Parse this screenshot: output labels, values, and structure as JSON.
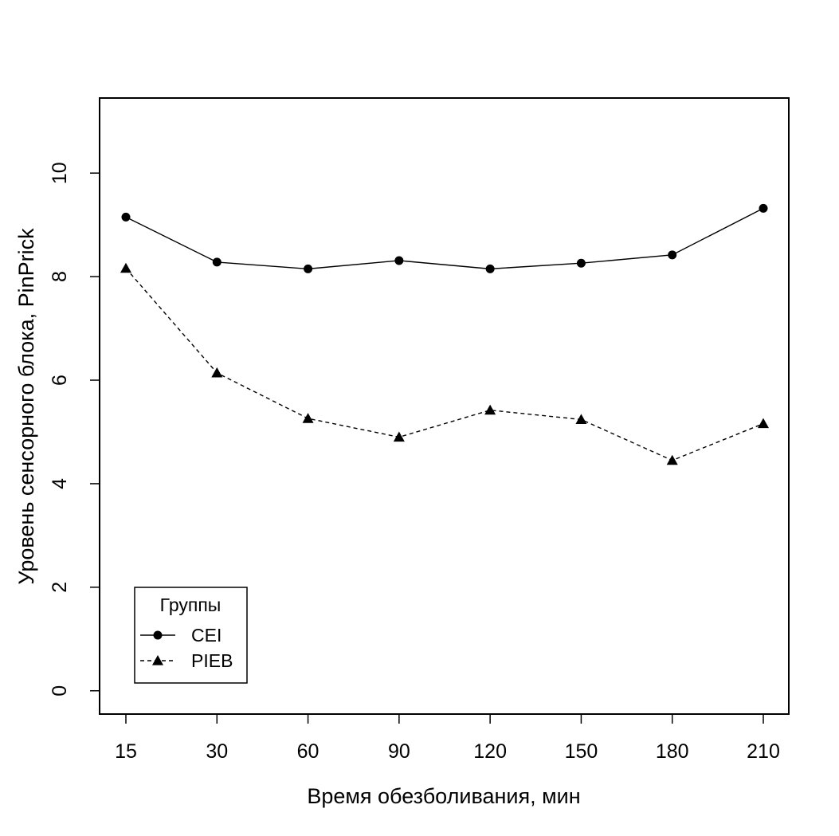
{
  "chart_data": {
    "type": "line",
    "title": "",
    "xlabel": "Время обезболивания, мин",
    "ylabel": "Уровень сенсорного блока, PinPrick",
    "categories": [
      "15",
      "30",
      "60",
      "90",
      "120",
      "150",
      "180",
      "210"
    ],
    "ylim": [
      -0.45,
      11.45
    ],
    "yticks": [
      0,
      2,
      4,
      6,
      8,
      10
    ],
    "grid": false,
    "legend": {
      "title": "Группы",
      "position": "bottom-left"
    },
    "series": [
      {
        "name": "CEI",
        "values": [
          9.15,
          8.28,
          8.15,
          8.31,
          8.15,
          8.26,
          8.42,
          9.32
        ],
        "marker": "circle",
        "line": "solid",
        "color": "#000000"
      },
      {
        "name": "PIEB",
        "values": [
          8.16,
          6.14,
          5.26,
          4.9,
          5.42,
          5.24,
          4.45,
          5.16
        ],
        "marker": "triangle",
        "line": "dashed",
        "color": "#000000"
      }
    ]
  }
}
